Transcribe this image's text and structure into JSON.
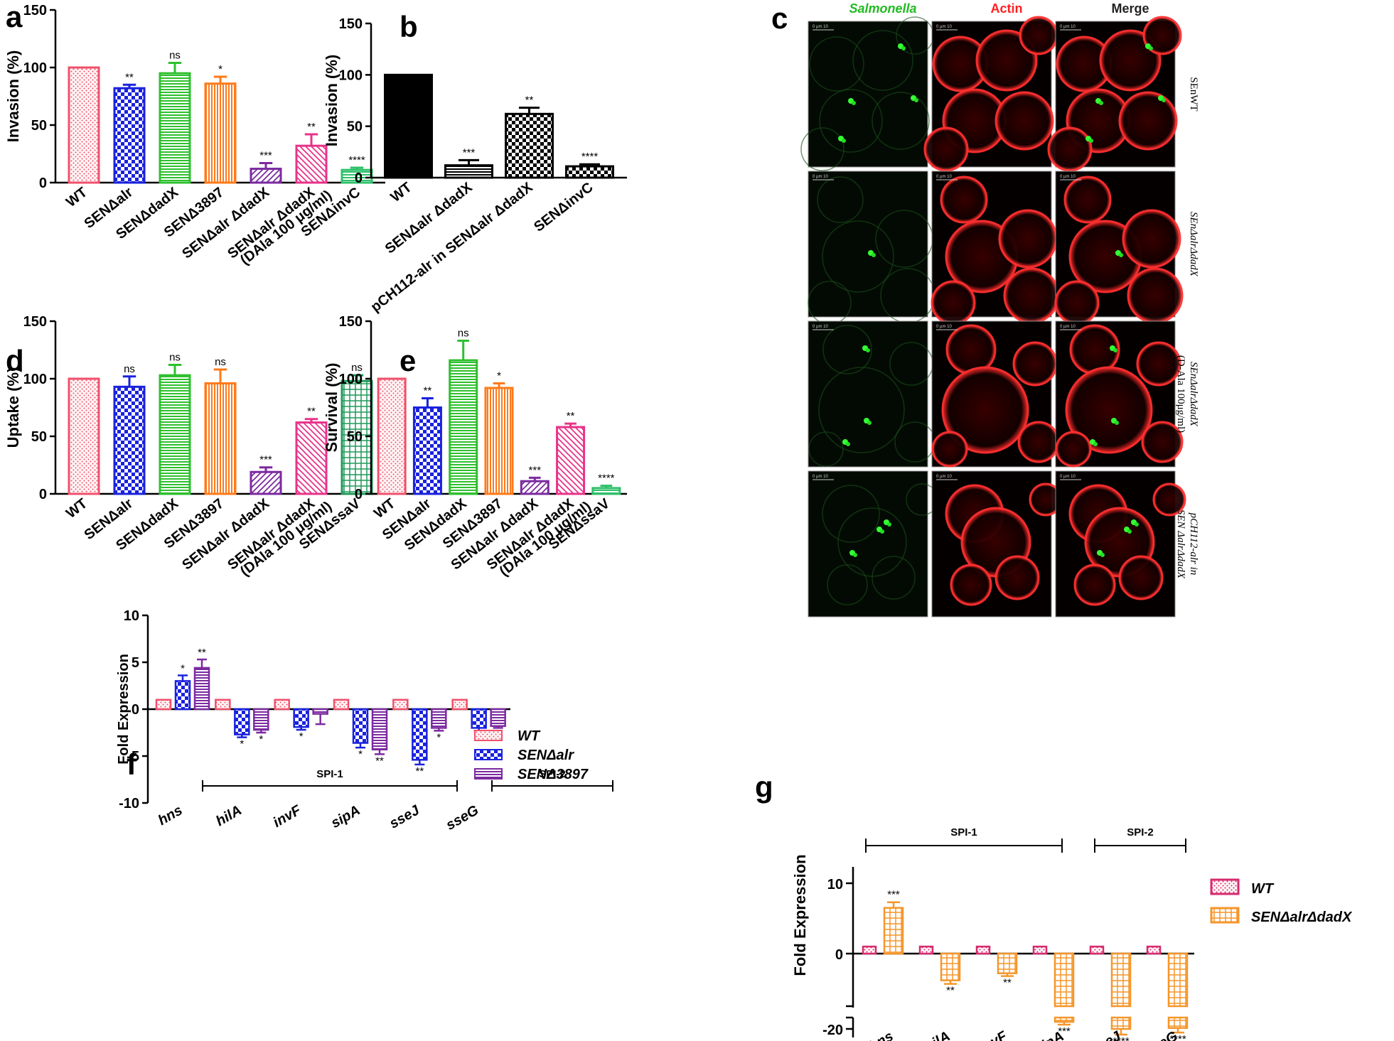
{
  "colors": {
    "wt": "#f0506a",
    "alr": "#1a22dd",
    "dadx": "#2ec02e",
    "sen3897": "#ff7a1a",
    "double": "#7b2aa0",
    "dala": "#e8338a",
    "invc": "#2ec06a",
    "ssav": "#1f9a5a",
    "black": "#000000",
    "orange_g": "#f5962a",
    "wt_g": "#d62a6e"
  },
  "panels": {
    "a": "a",
    "b": "b",
    "c": "c",
    "d": "d",
    "e": "e",
    "f": "f",
    "g": "g"
  },
  "microscopy": {
    "columns": [
      "Salmonella",
      "Actin",
      "Merge"
    ],
    "rows": [
      {
        "label": "SEnWT"
      },
      {
        "label": "SEnΔalrΔdadX"
      },
      {
        "label": "SEnΔalrΔdadX",
        "label2": "(D-Ala 100μg/ml)"
      },
      {
        "label": "pCH112-alr in",
        "label2": "SEN ΔalrΔdadX"
      }
    ],
    "scalebar": "0 µm 10"
  },
  "chart_data": [
    {
      "panel": "a",
      "type": "bar",
      "ylabel": "Invasion (%)",
      "ylim": [
        0,
        150
      ],
      "yticks": [
        0,
        50,
        100,
        150
      ],
      "categories": [
        "WT",
        "SENΔalr",
        "SENΔdadX",
        "SENΔ3897",
        "SENΔalr ΔdadX",
        "SENΔalr ΔdadX (DAla 100 μg/ml)",
        "SENΔinvC"
      ],
      "tick_labels": [
        [
          "WT"
        ],
        [
          "SENΔalr"
        ],
        [
          "SENΔdadX"
        ],
        [
          "SENΔ3897"
        ],
        [
          "SENΔalr ΔdadX"
        ],
        [
          "SENΔalr ΔdadX",
          "(DAla 100 μg/ml)"
        ],
        [
          "SENΔinvC"
        ]
      ],
      "values": [
        100,
        82,
        95,
        86,
        12,
        32,
        11
      ],
      "errors": [
        0,
        3,
        9,
        6,
        5,
        10,
        2
      ],
      "significance": [
        "",
        "**",
        "ns",
        "*",
        "***",
        "**",
        "****"
      ]
    },
    {
      "panel": "b",
      "type": "bar",
      "ylabel": "Invasion (%)",
      "ylim": [
        0,
        150
      ],
      "yticks": [
        0,
        50,
        100,
        150
      ],
      "categories": [
        "WT",
        "SENΔalr ΔdadX",
        "pCH112-alr in SENΔalr ΔdadX",
        "SENΔinvC"
      ],
      "tick_labels": [
        [
          "WT"
        ],
        [
          "SENΔalr ΔdadX"
        ],
        [
          "pCH112-alr in SENΔalr ΔdadX"
        ],
        [
          "SENΔinvC"
        ]
      ],
      "values": [
        100,
        12,
        62,
        11
      ],
      "errors": [
        0,
        5,
        6,
        2
      ],
      "significance": [
        "",
        "***",
        "**",
        "****"
      ]
    },
    {
      "panel": "d",
      "type": "bar",
      "ylabel": "Uptake (%)",
      "ylim": [
        0,
        150
      ],
      "yticks": [
        0,
        50,
        100,
        150
      ],
      "categories": [
        "WT",
        "SENΔalr",
        "SENΔdadX",
        "SENΔ3897",
        "SENΔalr ΔdadX",
        "SENΔalr ΔdadX (DAla 100 μg/ml)",
        "SENΔssaV"
      ],
      "tick_labels": [
        [
          "WT"
        ],
        [
          "SENΔalr"
        ],
        [
          "SENΔdadX"
        ],
        [
          "SENΔ3897"
        ],
        [
          "SENΔalr ΔdadX"
        ],
        [
          "SENΔalr ΔdadX",
          "(DAla 100 μg/ml)"
        ],
        [
          "SENΔssaV"
        ]
      ],
      "values": [
        100,
        93,
        103,
        96,
        19,
        62,
        98
      ],
      "errors": [
        0,
        9,
        9,
        12,
        4,
        3,
        5
      ],
      "significance": [
        "",
        "ns",
        "ns",
        "ns",
        "***",
        "**",
        "ns"
      ]
    },
    {
      "panel": "e",
      "type": "bar",
      "ylabel": "Survival (%)",
      "ylim": [
        0,
        150
      ],
      "yticks": [
        0,
        50,
        100,
        150
      ],
      "categories": [
        "WT",
        "SENΔalr",
        "SENΔdadX",
        "SENΔ3897",
        "SENΔalr ΔdadX",
        "SENΔalr ΔdadX (DAla 100 μg/ml)",
        "SENΔssaV"
      ],
      "tick_labels": [
        [
          "WT"
        ],
        [
          "SENΔalr"
        ],
        [
          "SENΔdadX"
        ],
        [
          "SENΔ3897"
        ],
        [
          "SENΔalr ΔdadX"
        ],
        [
          "SENΔalr ΔdadX",
          "(DAla 100 μg/ml)"
        ],
        [
          "SENΔssaV"
        ]
      ],
      "values": [
        100,
        75,
        116,
        92,
        11,
        58,
        5
      ],
      "errors": [
        0,
        8,
        17,
        4,
        3,
        3,
        2
      ],
      "significance": [
        "",
        "**",
        "ns",
        "*",
        "***",
        "**",
        "****"
      ]
    },
    {
      "panel": "f",
      "type": "bar",
      "ylabel": "Fold Expression",
      "ylim": [
        -10,
        10
      ],
      "yticks": [
        -10,
        -5,
        0,
        5,
        10
      ],
      "categories": [
        "hns",
        "hilA",
        "invF",
        "sipA",
        "sseJ",
        "sseG"
      ],
      "series": [
        {
          "name": "WT",
          "values": [
            1,
            1,
            1,
            1,
            1,
            1
          ],
          "errors": [
            0,
            0,
            0,
            0,
            0,
            0
          ],
          "significance": [
            "",
            "",
            "",
            "",
            "",
            ""
          ]
        },
        {
          "name": "SENΔalr",
          "values": [
            3,
            -2.7,
            -1.9,
            -3.6,
            -5.4,
            -2.0
          ],
          "errors": [
            0.6,
            0.3,
            0.3,
            0.5,
            0.5,
            0.3
          ],
          "significance": [
            "*",
            "*",
            "*",
            "*",
            "**",
            "*"
          ]
        },
        {
          "name": "SENΔ3897",
          "values": [
            4.4,
            -2.2,
            -0.5,
            -4.3,
            -2.0,
            -1.8
          ],
          "errors": [
            0.9,
            0.3,
            1.1,
            0.5,
            0.3,
            0.2
          ],
          "significance": [
            "**",
            "*",
            "",
            "**",
            "*",
            "*"
          ]
        }
      ],
      "brackets": [
        {
          "label": "SPI-1",
          "from": "hns",
          "to": "sipA"
        },
        {
          "label": "SPI-2",
          "from": "sseJ",
          "to": "sseG"
        }
      ]
    },
    {
      "panel": "g",
      "type": "bar",
      "ylabel": "Fold Expression",
      "axis_break": true,
      "yticks": [
        -20,
        0,
        10
      ],
      "categories": [
        "hns",
        "hilA",
        "invF",
        "sipA",
        "sseJ",
        "sseG"
      ],
      "series": [
        {
          "name": "WT",
          "values": [
            1,
            1,
            1,
            1,
            1,
            1
          ],
          "errors": [
            0,
            0,
            0,
            0,
            0,
            0
          ],
          "significance": [
            "",
            "",
            "",
            "",
            "",
            ""
          ]
        },
        {
          "name": "SENΔalrΔdadX",
          "values": [
            6.5,
            -3.8,
            -2.8,
            -11.5,
            -19.5,
            -19
          ],
          "errors": [
            0.8,
            0.5,
            0.4,
            0.5,
            1.0,
            0.8
          ],
          "significance": [
            "***",
            "**",
            "**",
            "***",
            "****",
            "****"
          ]
        }
      ],
      "brackets": [
        {
          "label": "SPI-1",
          "from": "hns",
          "to": "sipA"
        },
        {
          "label": "SPI-2",
          "from": "sseJ",
          "to": "sseG"
        }
      ]
    }
  ]
}
